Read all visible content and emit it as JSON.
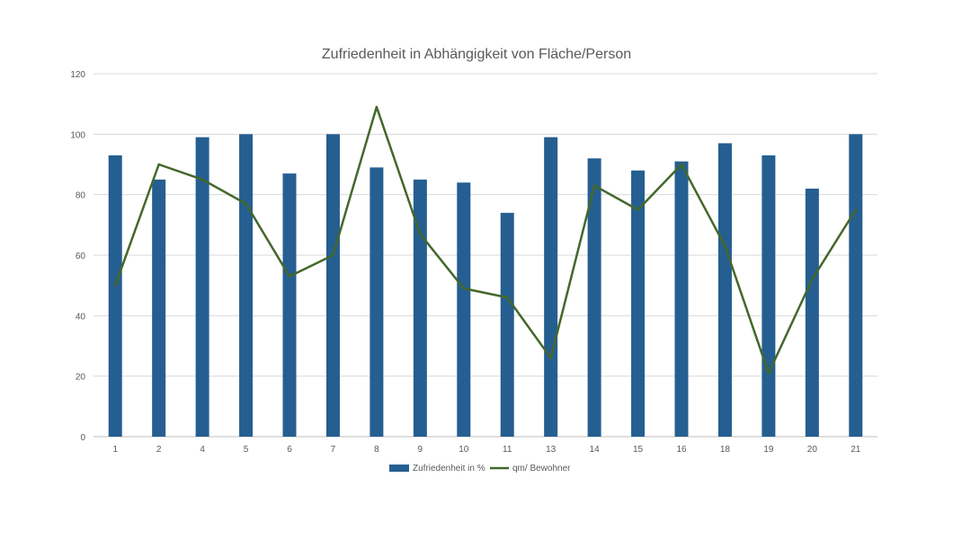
{
  "colors": {
    "bar": "#255e91",
    "line": "#43682b",
    "grid": "#d9d9d9",
    "axis": "#bfbfbf",
    "text": "#595959"
  },
  "chart_data": {
    "type": "bar",
    "title": "Zufriedenheit in Abhängigkeit von Fläche/Person",
    "xlabel": "",
    "ylabel": "",
    "ylim": [
      0,
      120
    ],
    "yticks": [
      0,
      20,
      40,
      60,
      80,
      100,
      120
    ],
    "grid": true,
    "legend_position": "bottom",
    "categories": [
      "1",
      "2",
      "4",
      "5",
      "6",
      "7",
      "8",
      "9",
      "10",
      "11",
      "13",
      "14",
      "15",
      "16",
      "18",
      "19",
      "20",
      "21"
    ],
    "series": [
      {
        "name": "Zufriedenheit in %",
        "type": "bar",
        "values": [
          93,
          85,
          99,
          100,
          87,
          100,
          89,
          85,
          84,
          74,
          99,
          92,
          88,
          91,
          97,
          93,
          82,
          100
        ]
      },
      {
        "name": "qm/ Bewohner",
        "type": "line",
        "values": [
          50,
          90,
          85,
          77,
          53,
          60,
          109,
          67,
          49,
          46,
          26,
          83,
          75,
          90,
          63,
          21,
          52,
          75
        ]
      }
    ]
  }
}
